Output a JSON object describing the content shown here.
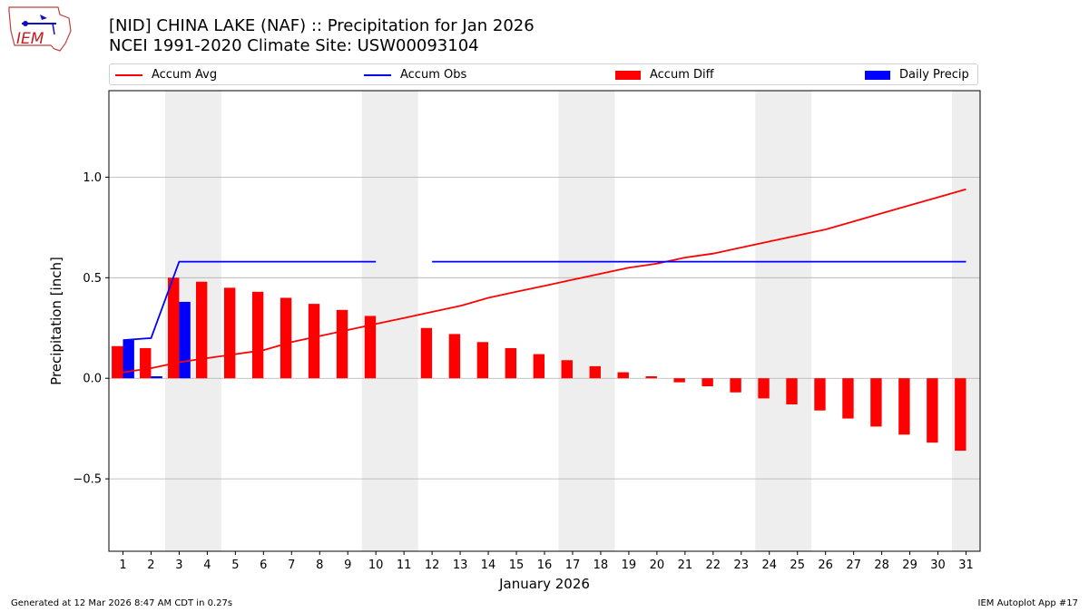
{
  "header": {
    "line1": "[NID] CHINA LAKE (NAF) :: Precipitation for Jan 2026",
    "line2": "NCEI 1991-2020 Climate Site: USW00093104",
    "logo_text": "IEM"
  },
  "legend": {
    "accum_avg": "Accum Avg",
    "accum_obs": "Accum Obs",
    "accum_diff": "Accum Diff",
    "daily_precip": "Daily Precip"
  },
  "footer": {
    "left": "Generated at 12 Mar 2026 8:47 AM CDT in 0.27s",
    "right": "IEM Autoplot App #17"
  },
  "colors": {
    "avg": "#ff0000",
    "obs": "#0000ff",
    "diff": "#ff0000",
    "daily": "#0000ff",
    "weekend": "#eeeeee",
    "grid": "#b0b0b0"
  },
  "chart_data": {
    "type": "bar",
    "title": "[NID] CHINA LAKE (NAF) :: Precipitation for Jan 2026",
    "xlabel": "January 2026",
    "ylabel": "Precipitation [inch]",
    "xlim": [
      0.5,
      31.5
    ],
    "ylim": [
      -0.86,
      1.43
    ],
    "yticks": [
      -0.5,
      0.0,
      0.5,
      1.0
    ],
    "ytick_labels": [
      "−0.5",
      "0.0",
      "0.5",
      "1.0"
    ],
    "days": [
      1,
      2,
      3,
      4,
      5,
      6,
      7,
      8,
      9,
      10,
      11,
      12,
      13,
      14,
      15,
      16,
      17,
      18,
      19,
      20,
      21,
      22,
      23,
      24,
      25,
      26,
      27,
      28,
      29,
      30,
      31
    ],
    "weekend_spans": [
      [
        2.5,
        4.5
      ],
      [
        9.5,
        11.5
      ],
      [
        16.5,
        18.5
      ],
      [
        23.5,
        25.5
      ],
      [
        30.5,
        31.5
      ]
    ],
    "grid": "horizontal",
    "series": [
      {
        "name": "Accum Avg",
        "kind": "line",
        "values": [
          0.03,
          0.05,
          0.08,
          0.1,
          0.12,
          0.14,
          0.18,
          0.21,
          0.24,
          0.27,
          0.3,
          0.33,
          0.36,
          0.4,
          0.43,
          0.46,
          0.49,
          0.52,
          0.55,
          0.57,
          0.6,
          0.62,
          0.65,
          0.68,
          0.71,
          0.74,
          0.78,
          0.82,
          0.86,
          0.9,
          0.94
        ]
      },
      {
        "name": "Accum Obs",
        "kind": "line",
        "values": [
          0.19,
          0.2,
          0.58,
          0.58,
          0.58,
          0.58,
          0.58,
          0.58,
          0.58,
          0.58,
          null,
          0.58,
          0.58,
          0.58,
          0.58,
          0.58,
          0.58,
          0.58,
          0.58,
          0.58,
          0.58,
          0.58,
          0.58,
          0.58,
          0.58,
          0.58,
          0.58,
          0.58,
          0.58,
          0.58,
          0.58
        ]
      },
      {
        "name": "Accum Diff",
        "kind": "bar",
        "values": [
          0.16,
          0.15,
          0.5,
          0.48,
          0.45,
          0.43,
          0.4,
          0.37,
          0.34,
          0.31,
          null,
          0.25,
          0.22,
          0.18,
          0.15,
          0.12,
          0.09,
          0.06,
          0.03,
          0.01,
          -0.02,
          -0.04,
          -0.07,
          -0.1,
          -0.13,
          -0.16,
          -0.2,
          -0.24,
          -0.28,
          -0.32,
          -0.36
        ]
      },
      {
        "name": "Daily Precip",
        "kind": "bar",
        "values": [
          0.19,
          0.01,
          0.38,
          0,
          0,
          0,
          0,
          0,
          0,
          0,
          null,
          0,
          0,
          0,
          0,
          0,
          0,
          0,
          0,
          0,
          0,
          0,
          0,
          0,
          0,
          0,
          0,
          0,
          0,
          0,
          0
        ]
      }
    ]
  }
}
